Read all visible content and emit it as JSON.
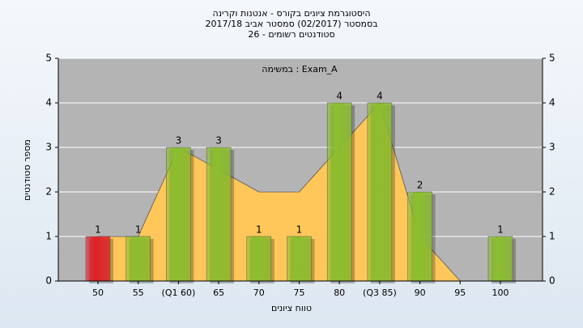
{
  "chart_data": {
    "type": "bar",
    "title": "היסטוגרמת ציונים בקורס - אנטנות וקרינה",
    "subtitle": [
      "בסמסטר  (02/2017)  סמסטר אביב 2017/18",
      "סטודנטים רשומים - 26"
    ],
    "annotation": "במשימה : Exam_A",
    "x_label": "טווח ציונים",
    "y_label": "מספר סטודנטים",
    "categories": [
      "50",
      "55",
      "(Q1 60)",
      "65",
      "70",
      "75",
      "80",
      "(Q3 85)",
      "90",
      "95",
      "100"
    ],
    "series": [
      {
        "type": "area",
        "color": "#ffc75a",
        "values": [
          1,
          1,
          3,
          2.5,
          2,
          2,
          3,
          4,
          1,
          0,
          0
        ]
      },
      {
        "type": "bar",
        "colors": [
          "#e0202a",
          "#8cbf2e",
          "#8cbf2e",
          "#8cbf2e",
          "#8cbf2e",
          "#8cbf2e",
          "#8cbf2e",
          "#8cbf2e",
          "#8cbf2e",
          "#8cbf2e",
          "#8cbf2e"
        ],
        "values": [
          1,
          1,
          3,
          3,
          1,
          1,
          4,
          4,
          2,
          0,
          1
        ]
      }
    ],
    "ylim": [
      0,
      5
    ],
    "yticks": [
      0,
      1,
      2,
      3,
      4,
      5
    ],
    "grid": true,
    "secondary_y_ticks": true
  }
}
